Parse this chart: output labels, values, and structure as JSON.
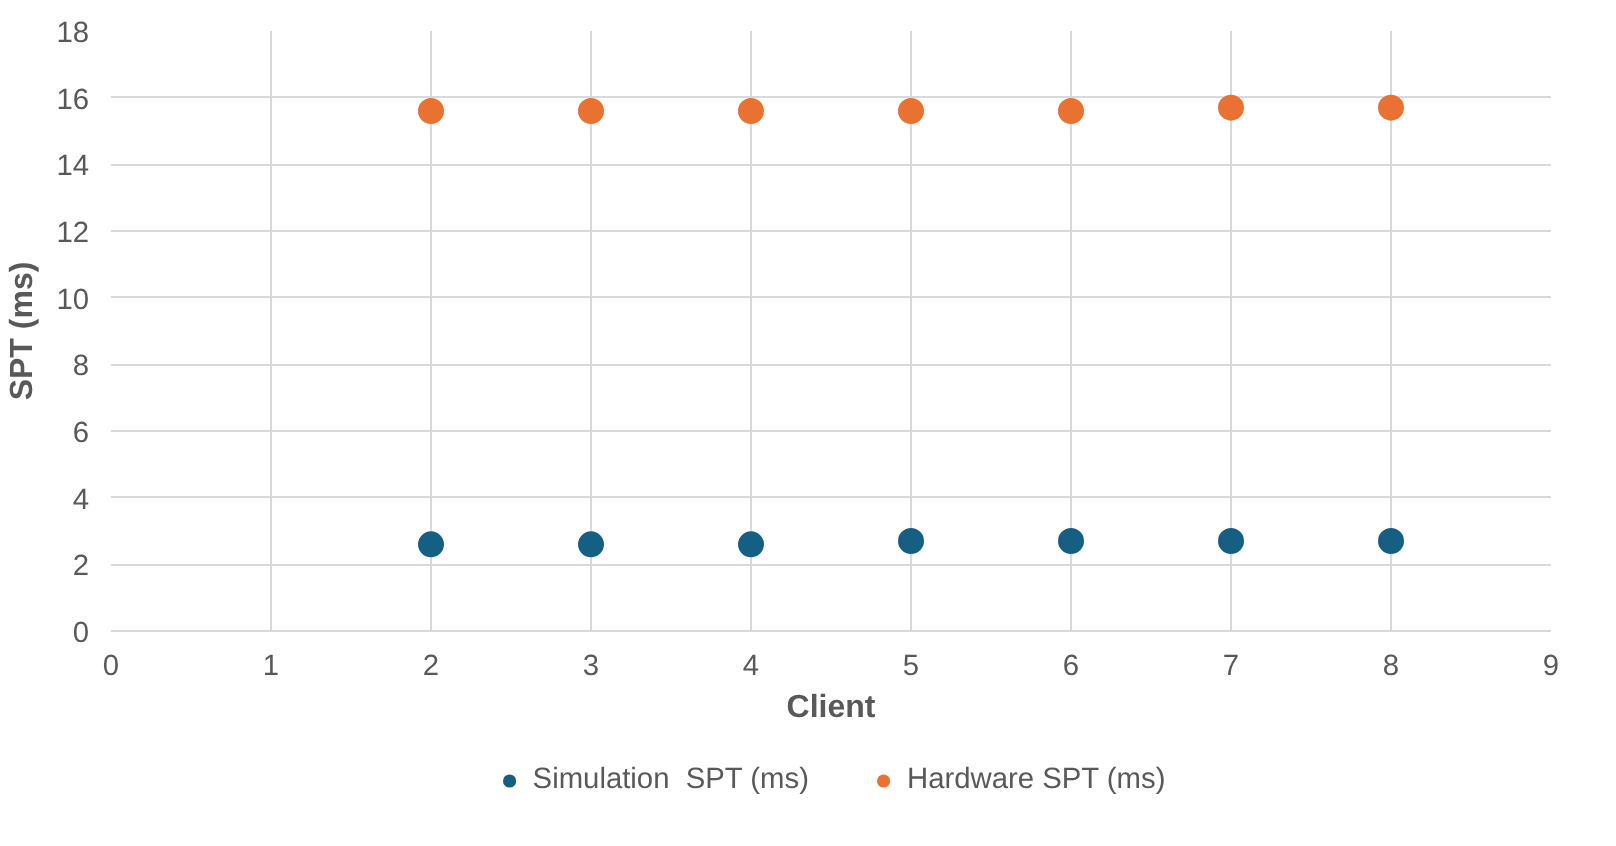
{
  "chart_data": {
    "type": "scatter",
    "xlabel": "Client",
    "ylabel": "SPT (ms)",
    "x": [
      2,
      3,
      4,
      5,
      6,
      7,
      8
    ],
    "series": [
      {
        "name": "Simulation  SPT (ms)",
        "color": "#156082",
        "values": [
          2.6,
          2.6,
          2.6,
          2.7,
          2.7,
          2.7,
          2.7
        ]
      },
      {
        "name": "Hardware SPT (ms)",
        "color": "#e97132",
        "values": [
          15.6,
          15.6,
          15.6,
          15.6,
          15.6,
          15.7,
          15.7
        ]
      }
    ],
    "xlim": [
      0,
      9
    ],
    "xticks": [
      0,
      1,
      2,
      3,
      4,
      5,
      6,
      7,
      8,
      9
    ],
    "ylim": [
      0,
      18
    ],
    "yticks": [
      0,
      2,
      4,
      6,
      8,
      10,
      12,
      14,
      16,
      18
    ],
    "grid": true,
    "legend": "bottom",
    "marker": "circle"
  }
}
